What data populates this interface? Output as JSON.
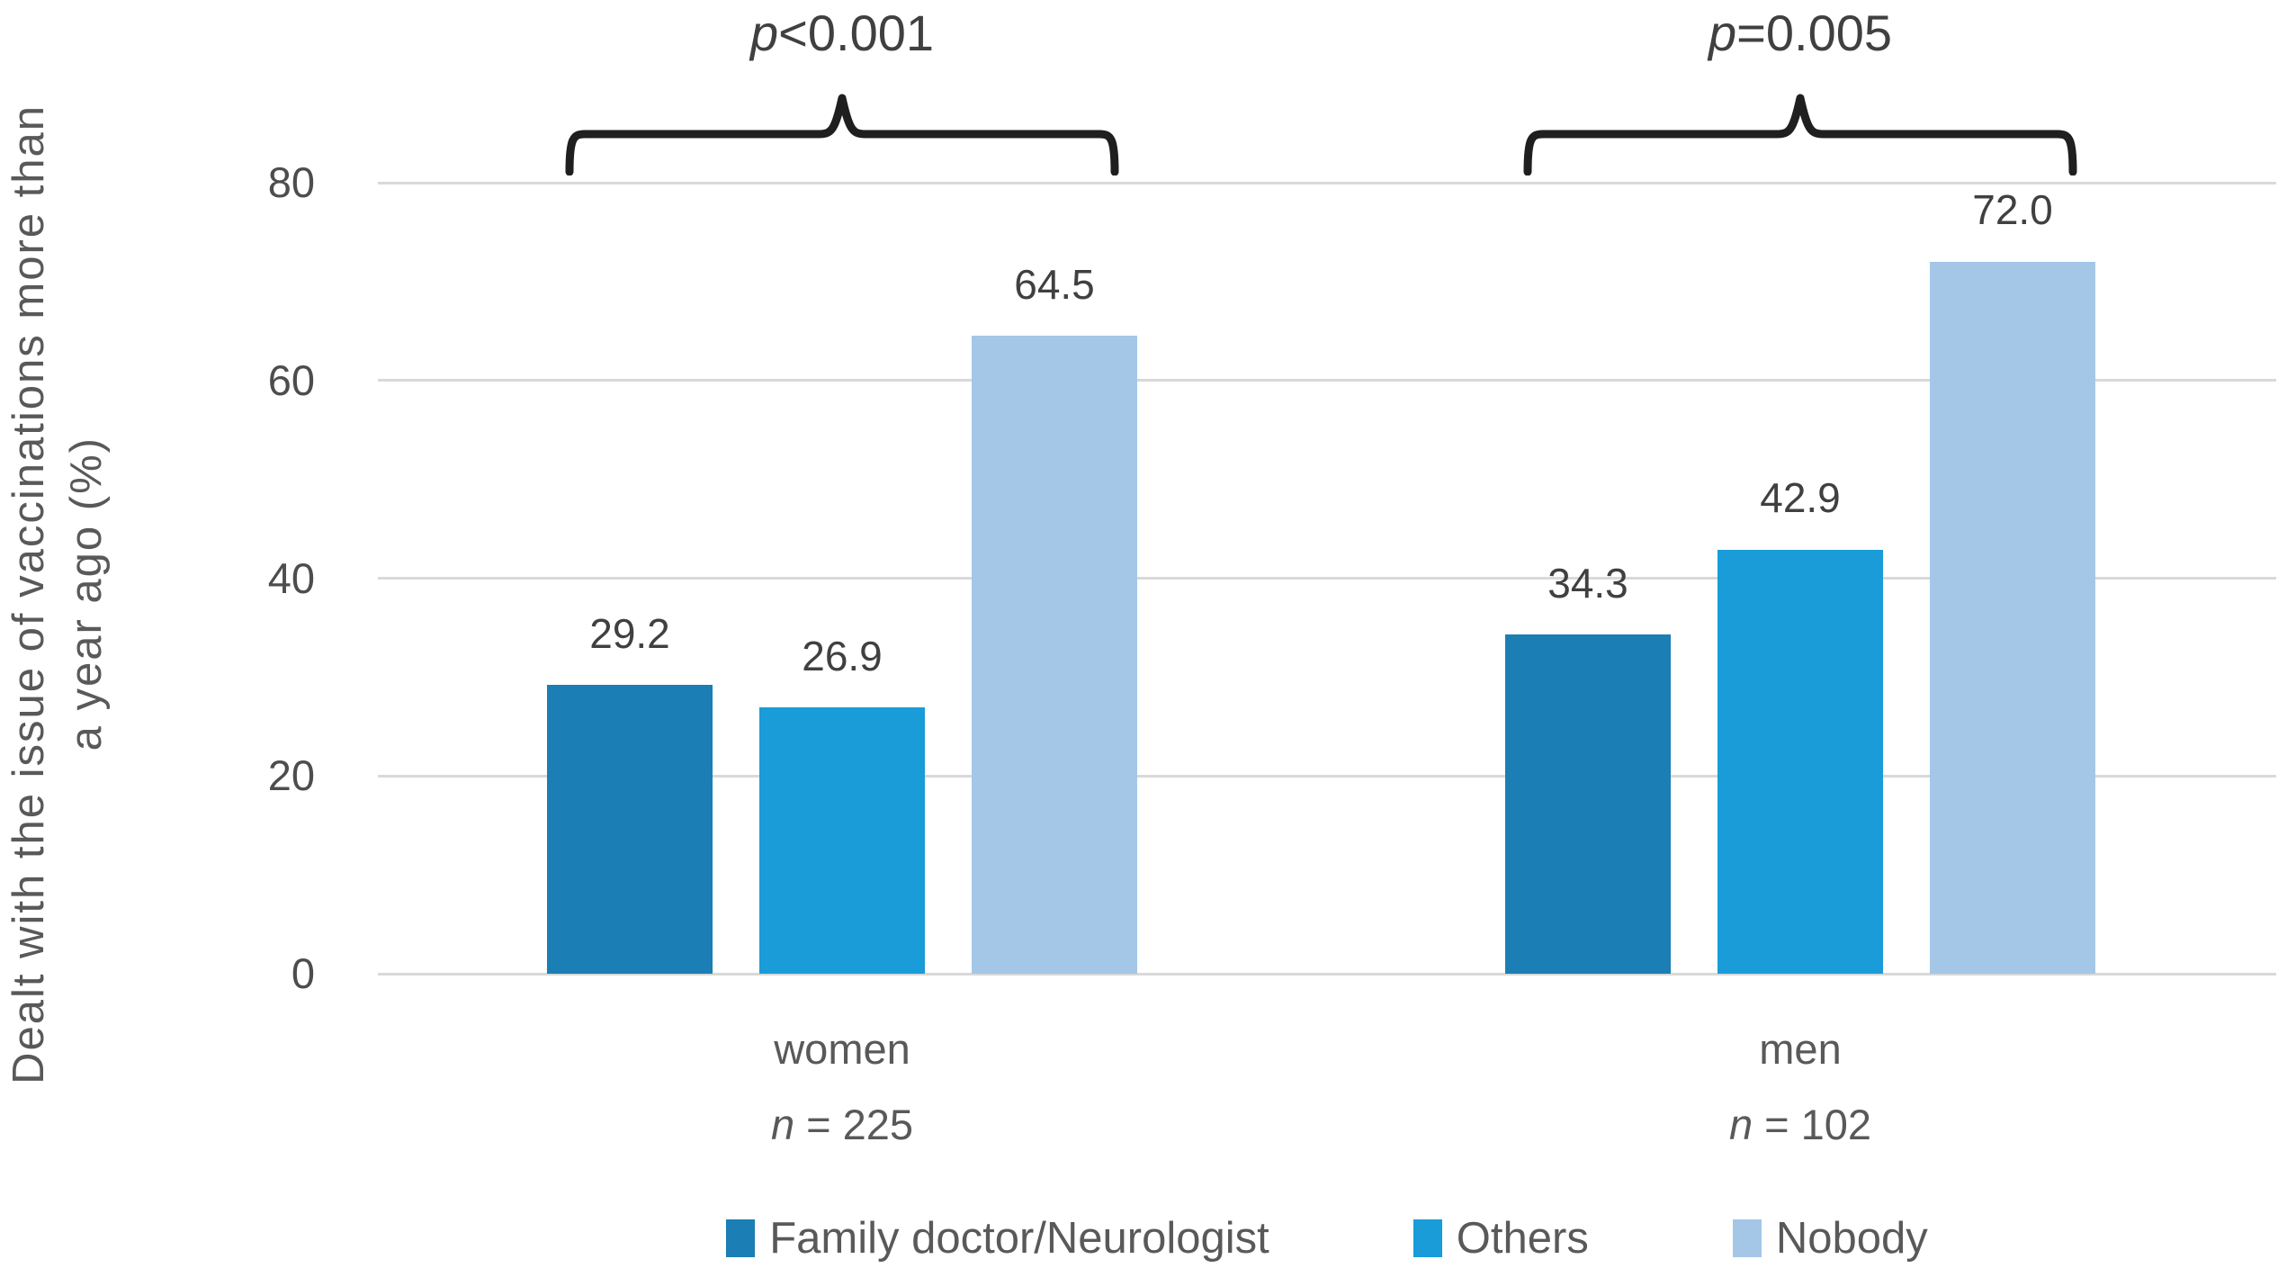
{
  "y_axis_title": {
    "line1": "Dealt with the issue of vaccinations more than",
    "line2": "a year ago (%)"
  },
  "chart_data": {
    "type": "bar",
    "title": "",
    "xlabel": "",
    "ylabel": "Dealt with the issue of vaccinations more than a year ago (%)",
    "ylim": [
      0,
      80
    ],
    "yticks": [
      0,
      20,
      40,
      60,
      80
    ],
    "grid": "horizontal",
    "legend_position": "bottom",
    "categories": [
      "women",
      "men"
    ],
    "groups": [
      {
        "label": "women",
        "n_label": "n = 225",
        "p_label": "p<0.001"
      },
      {
        "label": "men",
        "n_label": "n = 102",
        "p_label": "p=0.005"
      }
    ],
    "series": [
      {
        "name": "Family doctor/Neurologist",
        "color": "#1b7eb4",
        "values": [
          29.2,
          34.3
        ]
      },
      {
        "name": "Others",
        "color": "#199cd8",
        "values": [
          26.9,
          42.9
        ]
      },
      {
        "name": "Nobody",
        "color": "#a4c7e8",
        "values": [
          64.5,
          72.0
        ]
      }
    ]
  },
  "colors": {
    "grid": "#d9d9d9",
    "axis_text": "#4d4d4d",
    "value_text": "#404040",
    "secondary_text": "#595959",
    "bracket": "#1f1f1f",
    "background": "#ffffff"
  }
}
